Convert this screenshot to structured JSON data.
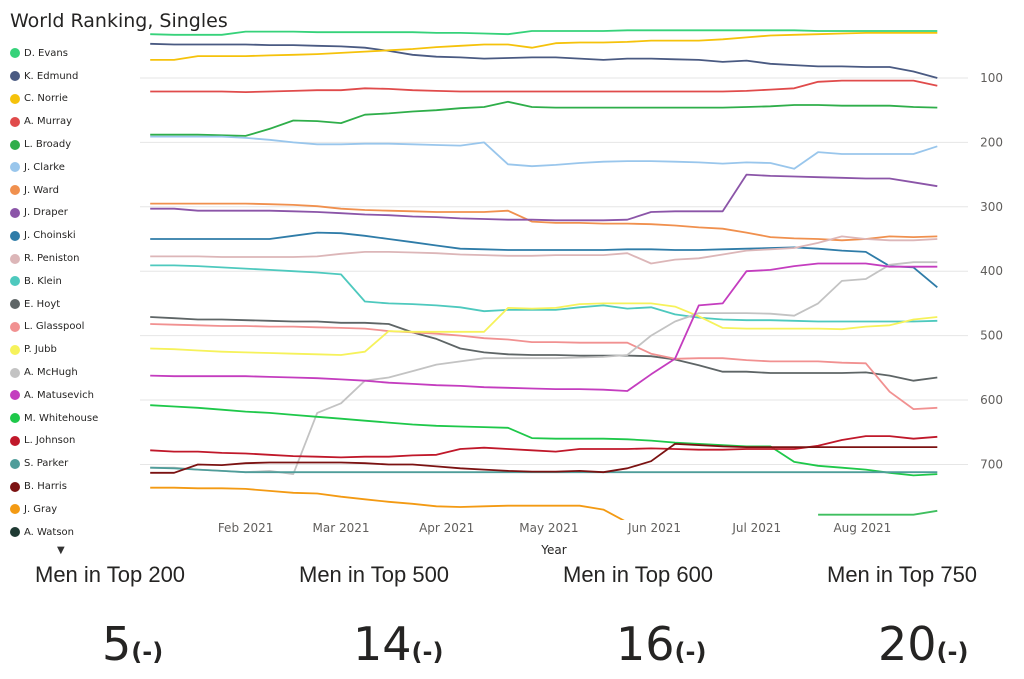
{
  "title": "World Ranking, Singles",
  "legend_more_icon": "triangle-down-icon",
  "kpis": [
    {
      "label": "Men in Top 200",
      "value": "5",
      "delta": "(-)"
    },
    {
      "label": "Men in Top 500",
      "value": "14",
      "delta": "(-)"
    },
    {
      "label": "Men in Top 600",
      "value": "16",
      "delta": "(-)"
    },
    {
      "label": "Men in Top 750",
      "value": "20",
      "delta": "(-)"
    }
  ],
  "chart_data": {
    "type": "line",
    "title": "World Ranking, Singles",
    "xlabel": "Year",
    "ylabel": "",
    "y_reversed": true,
    "ylim": [
      10,
      780
    ],
    "xlim": [
      "2021-01-01",
      "2021-09-01"
    ],
    "x_ticks": [
      "2021-02-01",
      "2021-03-01",
      "2021-04-01",
      "2021-05-01",
      "2021-06-01",
      "2021-07-01",
      "2021-08-01"
    ],
    "x_tick_labels": [
      "Feb 2021",
      "Mar 2021",
      "Apr 2021",
      "May 2021",
      "Jun 2021",
      "Jul 2021",
      "Aug 2021"
    ],
    "y_ticks": [
      100,
      200,
      300,
      400,
      500,
      600,
      700
    ],
    "grid": true,
    "legend_position": "left",
    "x": [
      "2021-01-04",
      "2021-01-11",
      "2021-01-18",
      "2021-01-25",
      "2021-02-01",
      "2021-02-08",
      "2021-02-15",
      "2021-02-22",
      "2021-03-01",
      "2021-03-08",
      "2021-03-15",
      "2021-03-22",
      "2021-03-29",
      "2021-04-05",
      "2021-04-12",
      "2021-04-19",
      "2021-04-26",
      "2021-05-03",
      "2021-05-10",
      "2021-05-17",
      "2021-05-24",
      "2021-05-31",
      "2021-06-07",
      "2021-06-14",
      "2021-06-21",
      "2021-06-28",
      "2021-07-05",
      "2021-07-12",
      "2021-07-19",
      "2021-07-26",
      "2021-08-02",
      "2021-08-09",
      "2021-08-16",
      "2021-08-23"
    ],
    "series": [
      {
        "name": "D. Evans",
        "color": "#36d27a",
        "values": [
          32,
          33,
          33,
          33,
          28,
          28,
          28,
          29,
          29,
          29,
          29,
          29,
          30,
          30,
          31,
          32,
          27,
          27,
          27,
          27,
          26,
          26,
          26,
          26,
          26,
          26,
          26,
          26,
          27,
          27,
          27,
          27,
          27,
          27
        ]
      },
      {
        "name": "K. Edmund",
        "color": "#4a5a82",
        "values": [
          47,
          48,
          48,
          48,
          48,
          49,
          49,
          50,
          51,
          53,
          58,
          64,
          67,
          68,
          70,
          69,
          68,
          68,
          70,
          72,
          70,
          70,
          71,
          72,
          75,
          73,
          78,
          80,
          82,
          82,
          83,
          83,
          90,
          100
        ]
      },
      {
        "name": "C. Norrie",
        "color": "#f5c20b",
        "values": [
          72,
          72,
          66,
          66,
          66,
          65,
          64,
          63,
          61,
          59,
          57,
          55,
          52,
          50,
          48,
          48,
          53,
          46,
          45,
          45,
          44,
          42,
          42,
          42,
          40,
          37,
          34,
          33,
          32,
          31,
          30,
          30,
          30,
          30
        ]
      },
      {
        "name": "A. Murray",
        "color": "#e04b4b",
        "values": [
          121,
          121,
          121,
          121,
          122,
          121,
          120,
          119,
          119,
          116,
          117,
          119,
          120,
          121,
          121,
          121,
          121,
          121,
          121,
          121,
          121,
          121,
          121,
          121,
          121,
          120,
          118,
          116,
          106,
          104,
          104,
          104,
          104,
          112
        ]
      },
      {
        "name": "L. Broady",
        "color": "#2fae4a",
        "values": [
          188,
          188,
          188,
          189,
          190,
          179,
          166,
          167,
          170,
          157,
          155,
          152,
          150,
          147,
          145,
          137,
          145,
          146,
          146,
          146,
          146,
          146,
          146,
          146,
          146,
          145,
          144,
          142,
          142,
          143,
          143,
          143,
          145,
          146
        ]
      },
      {
        "name": "J. Clarke",
        "color": "#99c6ec",
        "values": [
          191,
          191,
          191,
          191,
          193,
          196,
          200,
          203,
          203,
          202,
          202,
          203,
          204,
          205,
          200,
          234,
          237,
          235,
          232,
          230,
          229,
          229,
          230,
          231,
          233,
          231,
          232,
          241,
          215,
          218,
          218,
          218,
          218,
          206
        ]
      },
      {
        "name": "J. Ward",
        "color": "#f0904e",
        "values": [
          295,
          295,
          295,
          295,
          295,
          296,
          297,
          299,
          303,
          305,
          306,
          307,
          308,
          308,
          308,
          306,
          323,
          325,
          325,
          326,
          326,
          327,
          329,
          332,
          334,
          340,
          347,
          349,
          350,
          352,
          350,
          346,
          347,
          346
        ]
      },
      {
        "name": "J. Draper",
        "color": "#8b55a8",
        "values": [
          303,
          303,
          306,
          306,
          306,
          306,
          307,
          308,
          310,
          312,
          313,
          315,
          316,
          318,
          319,
          320,
          320,
          321,
          321,
          321,
          320,
          308,
          307,
          307,
          307,
          250,
          252,
          253,
          254,
          255,
          256,
          256,
          262,
          268
        ]
      },
      {
        "name": "J. Choinski",
        "color": "#2f7ca8",
        "values": [
          350,
          350,
          350,
          350,
          350,
          350,
          345,
          340,
          341,
          345,
          350,
          355,
          360,
          365,
          366,
          367,
          367,
          367,
          367,
          367,
          366,
          366,
          367,
          367,
          366,
          365,
          364,
          363,
          365,
          368,
          370,
          392,
          394,
          425
        ]
      },
      {
        "name": "R. Peniston",
        "color": "#dcb6b8",
        "values": [
          377,
          377,
          377,
          378,
          378,
          378,
          378,
          377,
          373,
          370,
          370,
          371,
          372,
          374,
          375,
          376,
          376,
          375,
          375,
          375,
          372,
          388,
          382,
          380,
          374,
          368,
          366,
          364,
          356,
          346,
          350,
          352,
          352,
          350
        ]
      },
      {
        "name": "B. Klein",
        "color": "#4ec9be",
        "values": [
          391,
          391,
          392,
          394,
          396,
          398,
          400,
          402,
          405,
          447,
          450,
          451,
          453,
          456,
          462,
          460,
          460,
          460,
          456,
          453,
          458,
          456,
          467,
          472,
          475,
          476,
          476,
          477,
          478,
          478,
          478,
          478,
          478,
          477
        ]
      },
      {
        "name": "E. Hoyt",
        "color": "#5e6566",
        "values": [
          471,
          473,
          475,
          475,
          476,
          477,
          478,
          478,
          480,
          480,
          482,
          495,
          505,
          520,
          526,
          529,
          530,
          530,
          531,
          531,
          531,
          532,
          537,
          546,
          556,
          556,
          558,
          558,
          558,
          558,
          557,
          562,
          570,
          565
        ]
      },
      {
        "name": "L. Glasspool",
        "color": "#f19191",
        "values": [
          482,
          483,
          484,
          485,
          485,
          486,
          486,
          487,
          488,
          489,
          493,
          495,
          497,
          500,
          504,
          506,
          510,
          510,
          511,
          511,
          511,
          528,
          536,
          535,
          535,
          538,
          540,
          540,
          540,
          542,
          543,
          587,
          614,
          612
        ]
      },
      {
        "name": "P. Jubb",
        "color": "#f6f25b",
        "values": [
          520,
          521,
          523,
          525,
          526,
          527,
          528,
          529,
          530,
          525,
          493,
          494,
          494,
          494,
          494,
          457,
          458,
          457,
          451,
          450,
          450,
          450,
          455,
          470,
          488,
          489,
          489,
          489,
          489,
          490,
          486,
          484,
          475,
          471
        ]
      },
      {
        "name": "A. McHugh",
        "color": "#c3c3c3",
        "values": [
          705,
          705,
          708,
          710,
          712,
          710,
          715,
          620,
          605,
          570,
          565,
          555,
          545,
          540,
          535,
          535,
          535,
          535,
          534,
          533,
          530,
          500,
          478,
          465,
          465,
          465,
          466,
          469,
          450,
          415,
          412,
          390,
          386,
          386
        ]
      },
      {
        "name": "A. Matusevich",
        "color": "#c43dbf",
        "values": [
          562,
          563,
          563,
          563,
          563,
          564,
          565,
          566,
          568,
          570,
          573,
          575,
          577,
          578,
          580,
          581,
          582,
          583,
          583,
          584,
          586,
          560,
          536,
          453,
          450,
          400,
          398,
          392,
          388,
          388,
          388,
          393,
          393,
          393
        ]
      },
      {
        "name": "M. Whitehouse",
        "color": "#1ec84a",
        "values": [
          608,
          610,
          612,
          615,
          618,
          620,
          623,
          626,
          629,
          632,
          635,
          638,
          640,
          641,
          642,
          643,
          659,
          660,
          660,
          660,
          661,
          663,
          666,
          668,
          670,
          672,
          672,
          696,
          702,
          705,
          708,
          713,
          717,
          715
        ]
      },
      {
        "name": "L. Johnson",
        "color": "#c0182a",
        "values": [
          678,
          680,
          680,
          682,
          683,
          685,
          687,
          688,
          689,
          688,
          688,
          686,
          685,
          676,
          674,
          676,
          678,
          680,
          676,
          676,
          676,
          675,
          676,
          677,
          677,
          676,
          676,
          676,
          671,
          662,
          656,
          656,
          660,
          657
        ]
      },
      {
        "name": "S. Parker",
        "color": "#4f9d9a",
        "values": [
          705,
          706,
          708,
          710,
          712,
          712,
          712,
          712,
          712,
          712,
          712,
          712,
          712,
          712,
          712,
          712,
          712,
          712,
          712,
          712,
          712,
          712,
          712,
          712,
          712,
          712,
          712,
          712,
          712,
          712,
          712,
          712,
          712,
          712
        ]
      },
      {
        "name": "B. Harris",
        "color": "#7b1212",
        "values": [
          713,
          713,
          700,
          701,
          698,
          697,
          697,
          697,
          697,
          698,
          700,
          700,
          703,
          706,
          708,
          710,
          711,
          711,
          710,
          712,
          706,
          695,
          668,
          670,
          672,
          673,
          673,
          673,
          673,
          673,
          673,
          673,
          673,
          673
        ]
      },
      {
        "name": "J. Gray",
        "color": "#f39a13",
        "values": [
          736,
          736,
          737,
          737,
          738,
          741,
          744,
          745,
          750,
          754,
          758,
          761,
          765,
          766,
          765,
          764,
          764,
          764,
          764,
          770,
          790,
          null,
          null,
          null,
          null,
          null,
          null,
          null,
          null,
          null,
          null,
          null,
          null,
          null
        ]
      },
      {
        "name": "A. Watson",
        "color": "#1f3a33",
        "values": [
          null,
          null,
          null,
          null,
          null,
          null,
          null,
          null,
          null,
          null,
          null,
          null,
          null,
          null,
          null,
          null,
          null,
          null,
          null,
          null,
          null,
          null,
          null,
          null,
          null,
          null,
          null,
          null,
          null,
          null,
          null,
          null,
          null,
          null
        ]
      }
    ],
    "extra_series_partial": {
      "name": "",
      "color": "#3fbf5f",
      "x": [
        "2021-07-19",
        "2021-07-26",
        "2021-08-02",
        "2021-08-09",
        "2021-08-16",
        "2021-08-23"
      ],
      "values": [
        778,
        778,
        778,
        778,
        778,
        772
      ]
    }
  }
}
